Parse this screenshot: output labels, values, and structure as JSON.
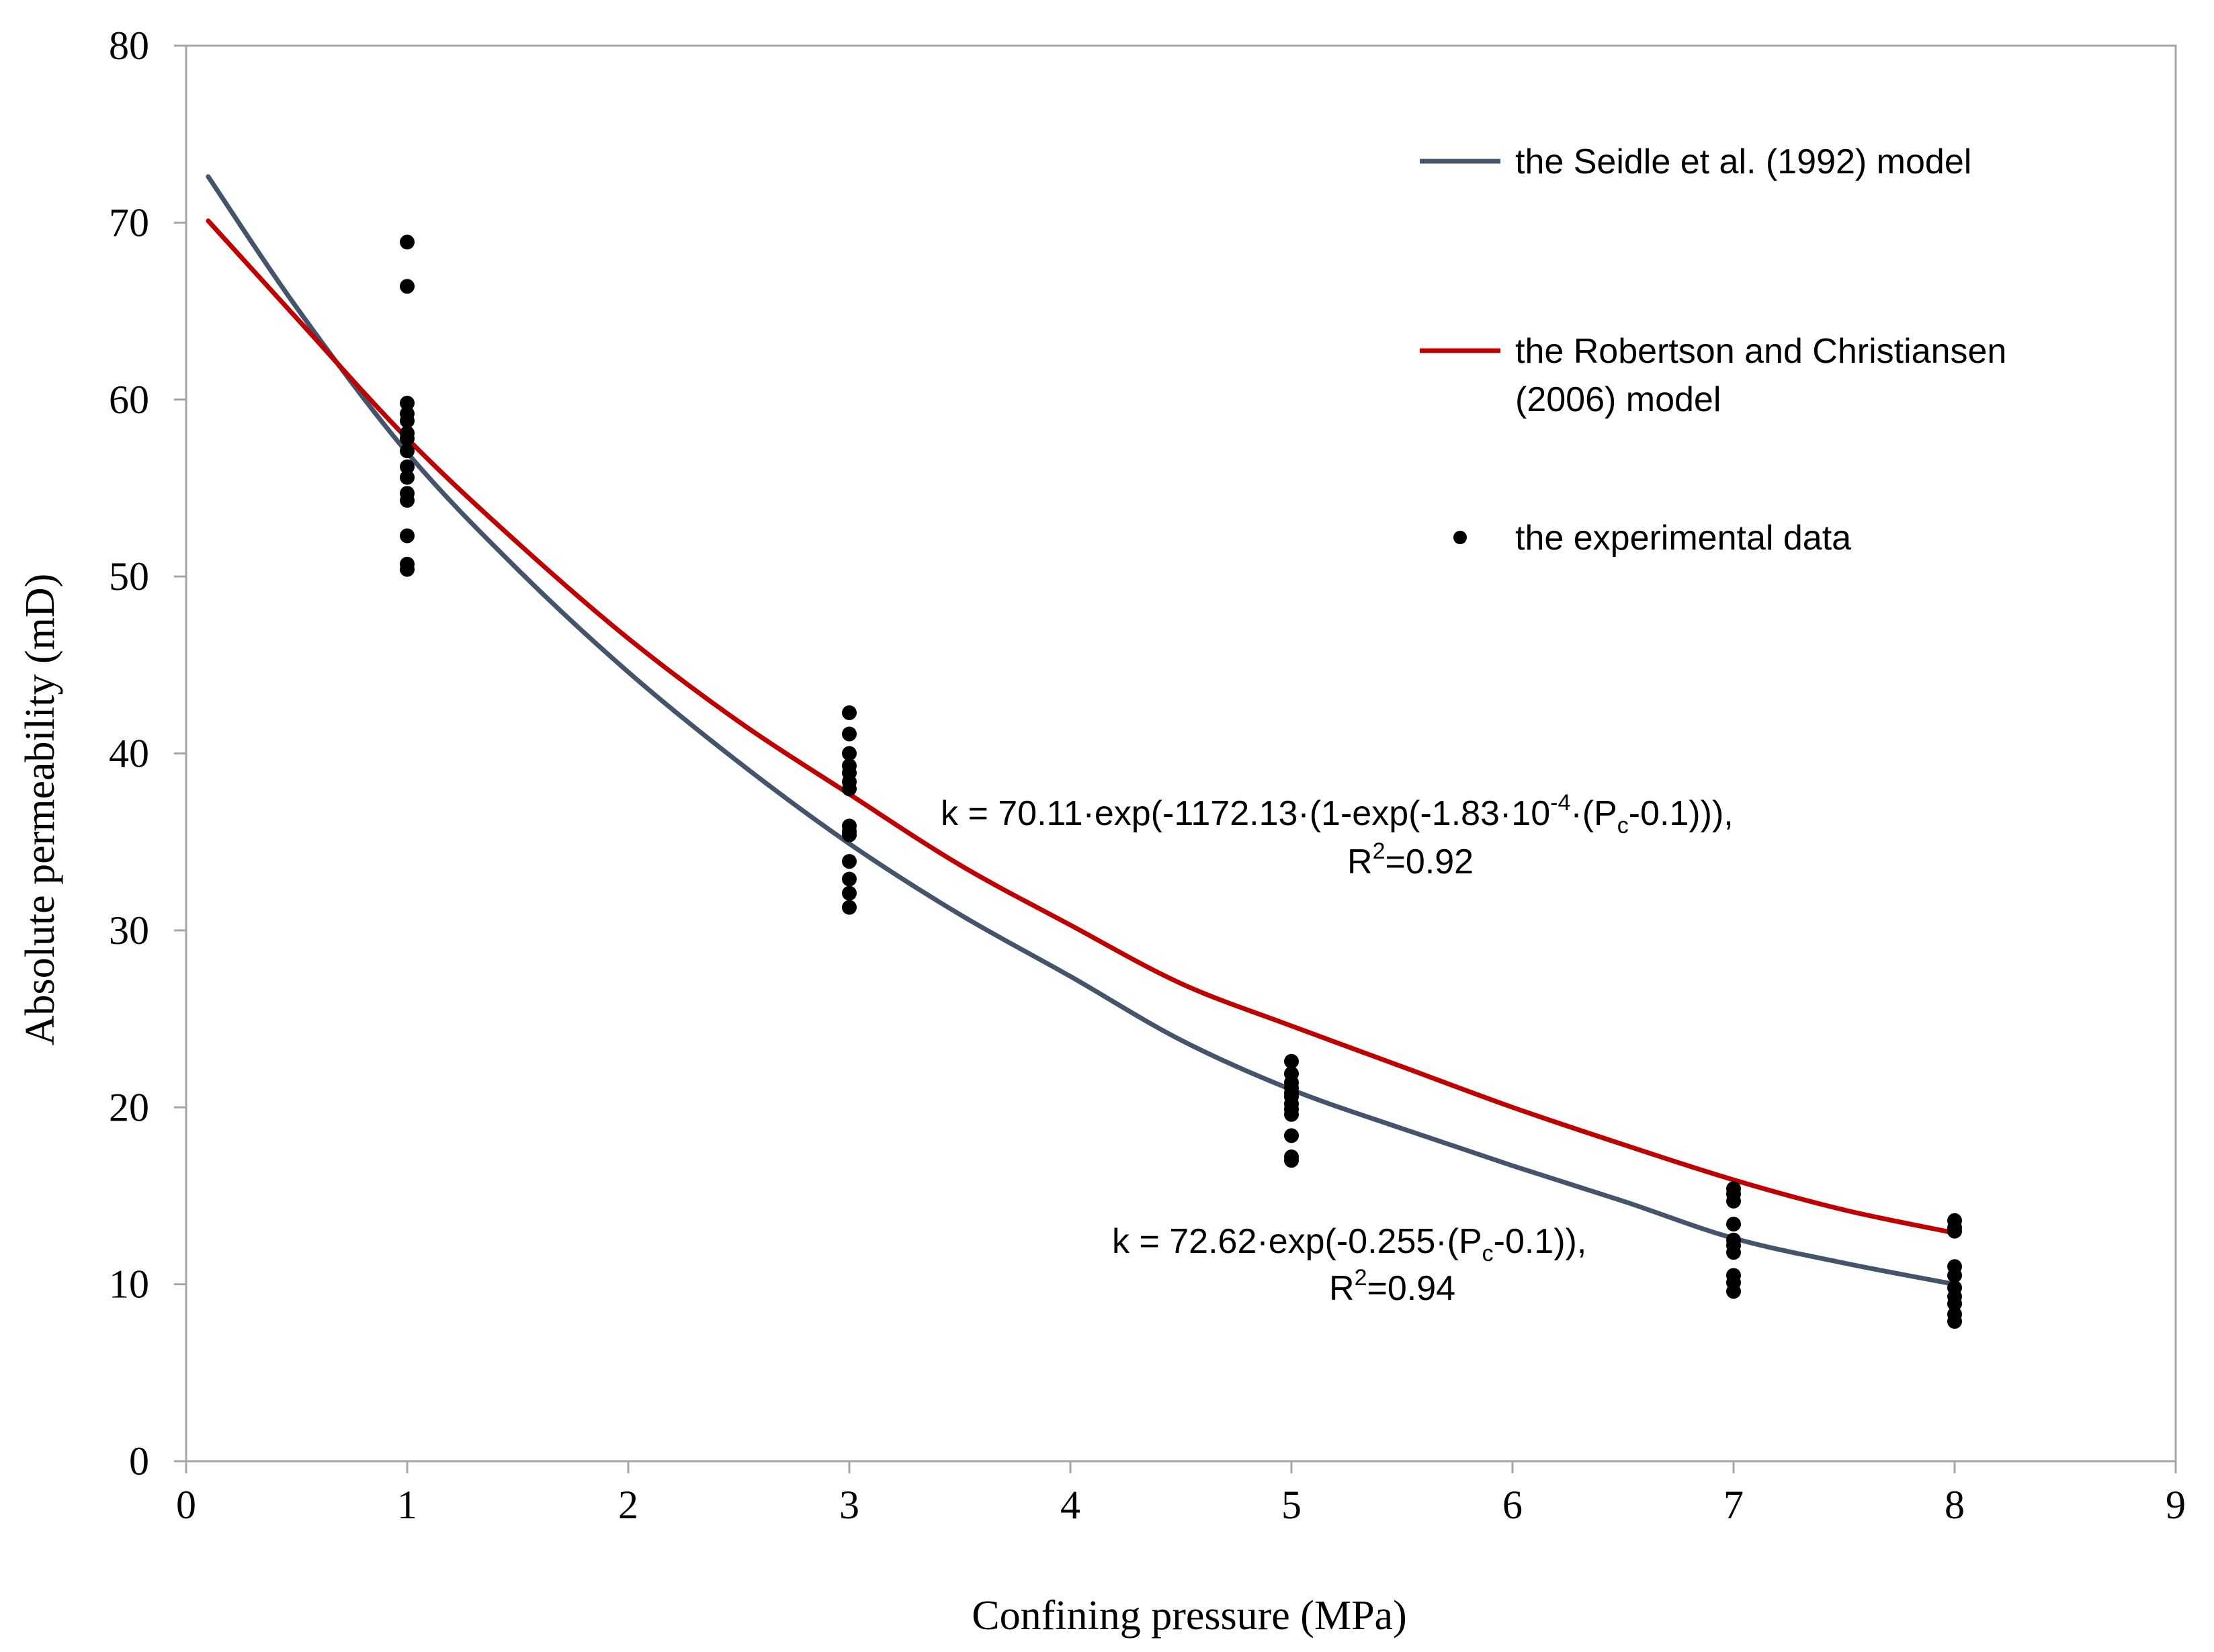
{
  "chart_data": {
    "type": "scatter",
    "xlabel": "Confining pressure (MPa)",
    "ylabel": "Absolute permeability (mD)",
    "xlim": [
      0,
      9
    ],
    "ylim": [
      0,
      80
    ],
    "xticks": [
      0,
      1,
      2,
      3,
      4,
      5,
      6,
      7,
      8,
      9
    ],
    "yticks": [
      0,
      10,
      20,
      30,
      40,
      50,
      60,
      70,
      80
    ],
    "grid": false,
    "legend_position": "top-right",
    "colors": {
      "seidle": "#44546a",
      "robertson": "#c00000",
      "data": "#000000",
      "axis": "#a6a6a6"
    },
    "series": [
      {
        "name": "the Seidle et al. (1992) model",
        "type": "line",
        "x": [
          0.1,
          0.5,
          1,
          1.5,
          2,
          2.5,
          3,
          3.5,
          4,
          4.5,
          5,
          5.5,
          6,
          6.5,
          7,
          7.5,
          8
        ],
        "y": [
          72.6,
          65.2,
          57.0,
          50.4,
          44.6,
          39.5,
          34.9,
          30.9,
          27.4,
          23.8,
          21.0,
          18.8,
          16.7,
          14.7,
          12.6,
          11.2,
          10.0
        ]
      },
      {
        "name": "the Robertson and Christiansen (2006) model",
        "type": "line",
        "x": [
          0.1,
          0.5,
          1,
          1.5,
          2,
          2.5,
          3,
          3.5,
          4,
          4.5,
          5,
          5.5,
          6,
          6.5,
          7,
          7.5,
          8
        ],
        "y": [
          70.1,
          64.6,
          57.8,
          51.9,
          46.5,
          41.8,
          37.7,
          33.7,
          30.3,
          27.0,
          24.6,
          22.3,
          20.0,
          17.9,
          15.9,
          14.2,
          12.9
        ]
      },
      {
        "name": "the experimental data",
        "type": "scatter",
        "points": [
          [
            1,
            68.9
          ],
          [
            1,
            66.4
          ],
          [
            1,
            59.8
          ],
          [
            1,
            59.2
          ],
          [
            1,
            58.8
          ],
          [
            1,
            58.1
          ],
          [
            1,
            57.8
          ],
          [
            1,
            57.1
          ],
          [
            1,
            56.2
          ],
          [
            1,
            55.6
          ],
          [
            1,
            54.7
          ],
          [
            1,
            54.3
          ],
          [
            1,
            52.3
          ],
          [
            1,
            50.7
          ],
          [
            1,
            50.4
          ],
          [
            3,
            42.3
          ],
          [
            3,
            41.1
          ],
          [
            3,
            40.0
          ],
          [
            3,
            39.3
          ],
          [
            3,
            38.9
          ],
          [
            3,
            38.4
          ],
          [
            3,
            38.0
          ],
          [
            3,
            35.9
          ],
          [
            3,
            35.6
          ],
          [
            3,
            35.4
          ],
          [
            3,
            33.9
          ],
          [
            3,
            32.9
          ],
          [
            3,
            32.1
          ],
          [
            3,
            31.3
          ],
          [
            5,
            22.6
          ],
          [
            5,
            21.9
          ],
          [
            5,
            21.4
          ],
          [
            5,
            21.1
          ],
          [
            5,
            20.8
          ],
          [
            5,
            20.6
          ],
          [
            5,
            20.2
          ],
          [
            5,
            19.9
          ],
          [
            5,
            19.6
          ],
          [
            5,
            18.4
          ],
          [
            5,
            17.2
          ],
          [
            5,
            17.0
          ],
          [
            7,
            15.4
          ],
          [
            7,
            15.1
          ],
          [
            7,
            14.7
          ],
          [
            7,
            13.4
          ],
          [
            7,
            12.5
          ],
          [
            7,
            12.2
          ],
          [
            7,
            11.8
          ],
          [
            7,
            10.5
          ],
          [
            7,
            10.1
          ],
          [
            7,
            9.6
          ],
          [
            8,
            13.6
          ],
          [
            8,
            13.2
          ],
          [
            8,
            13.0
          ],
          [
            8,
            11.0
          ],
          [
            8,
            10.5
          ],
          [
            8,
            9.8
          ],
          [
            8,
            9.3
          ],
          [
            8,
            8.9
          ],
          [
            8,
            8.3
          ],
          [
            8,
            7.9
          ]
        ]
      }
    ],
    "annotations": [
      {
        "line1": "k = 70.11·exp(-1172.13·(1-exp(-1.83·10",
        "sup": "-4",
        "line1b": "·(P",
        "sub": "c",
        "line1c": "-0.1))),",
        "r2_prefix": "R",
        "r2_sup": "2",
        "r2_value": "=0.92"
      },
      {
        "line1": "k = 72.62·exp(-0.255·(P",
        "sub": "c",
        "line1c": "-0.1)),",
        "r2_prefix": "R",
        "r2_sup": "2",
        "r2_value": "=0.94"
      }
    ]
  }
}
